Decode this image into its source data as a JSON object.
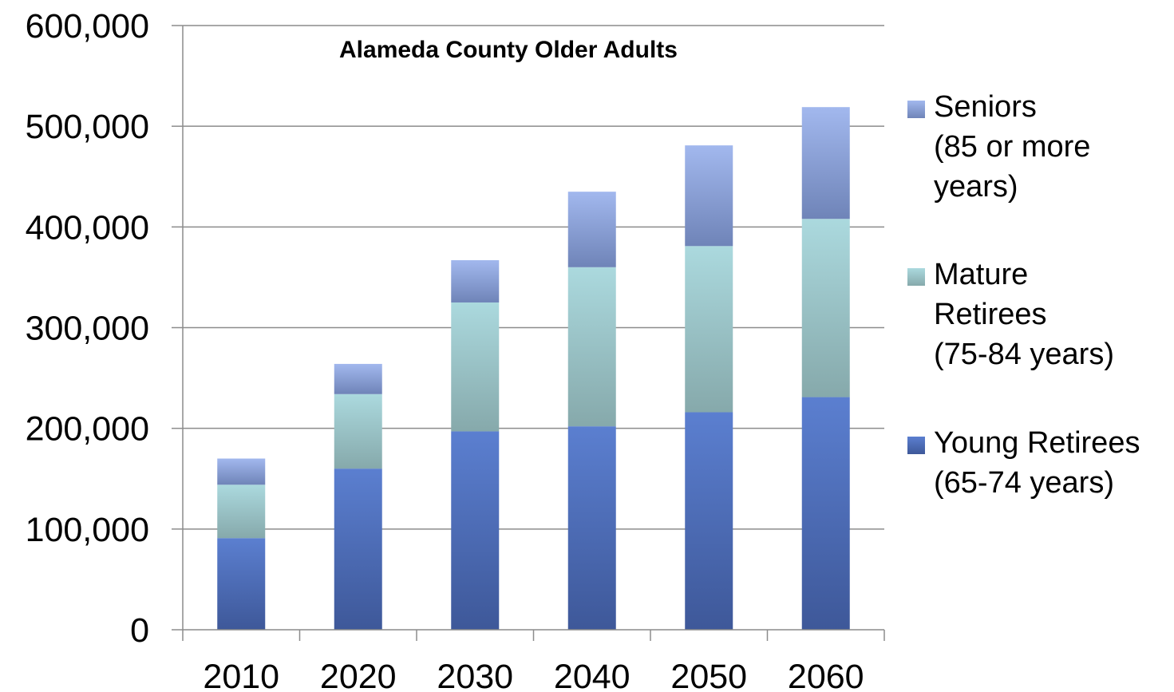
{
  "chart_data": {
    "type": "bar",
    "stacked": true,
    "title": "Alameda County Older Adults",
    "xlabel": "",
    "ylabel": "",
    "categories": [
      "2010",
      "2020",
      "2030",
      "2040",
      "2050",
      "2060"
    ],
    "ylim": [
      0,
      600000
    ],
    "yticks": [
      0,
      100000,
      200000,
      300000,
      400000,
      500000,
      600000
    ],
    "ytick_labels": [
      "0",
      "100,000",
      "200,000",
      "300,000",
      "400,000",
      "500,000",
      "600,000"
    ],
    "grid": true,
    "legend_position": "right",
    "series": [
      {
        "name": "Young Retirees (65-74 years)",
        "legend_lines": [
          "Young Retirees",
          "(65-74 years)"
        ],
        "color": "#4f6fbd",
        "values": [
          91000,
          160000,
          197000,
          202000,
          216000,
          231000
        ]
      },
      {
        "name": "Mature Retirees (75-84 years)",
        "legend_lines": [
          "Mature",
          "Retirees",
          "(75-84 years)"
        ],
        "color": "#9ccbcf",
        "values": [
          53000,
          74000,
          128000,
          158000,
          165000,
          177000
        ]
      },
      {
        "name": "Seniors (85 or more years)",
        "legend_lines": [
          "Seniors",
          "(85 or more",
          "years)"
        ],
        "color": "#8ea3dc",
        "values": [
          26000,
          30000,
          42000,
          75000,
          100000,
          111000
        ]
      }
    ]
  }
}
